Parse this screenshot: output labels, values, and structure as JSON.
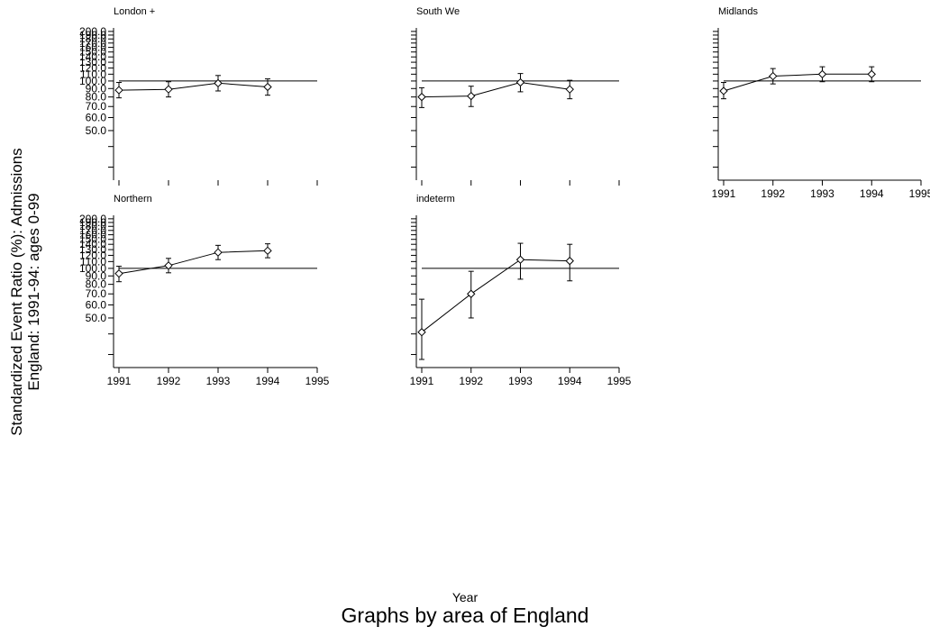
{
  "y_axis_label": {
    "line1": "Standardized Event Ratio (%): Admissions",
    "line2": "England: 1991-94: ages 0-99"
  },
  "x_axis_label": "Year",
  "by_label": "Graphs by area of England",
  "chart_data": {
    "type": "line",
    "style": "small-multiples with error bars, log-scaled y axis, reference line at 100",
    "x_ticks": [
      1991,
      1992,
      1993,
      1994,
      1995
    ],
    "y_ticks": [
      "200.0",
      "190.0",
      "180.0",
      "170.0",
      "160.0",
      "150.0",
      "140.0",
      "130.0",
      "120.0",
      "110.0",
      "100.0",
      "90.0",
      "80.0",
      "70.0",
      "60.0",
      "50.0"
    ],
    "y_minor_ticks": [
      40,
      30
    ],
    "ylim": [
      25,
      210
    ],
    "xlim": [
      1991,
      1995
    ],
    "reference_line": 100,
    "panels": [
      {
        "title": "London +",
        "x": [
          1991,
          1992,
          1993,
          1994
        ],
        "y": [
          88,
          89,
          97,
          92
        ],
        "lower": [
          79,
          80,
          87,
          82
        ],
        "upper": [
          98,
          99,
          108,
          103
        ]
      },
      {
        "title": "South We",
        "x": [
          1991,
          1992,
          1993,
          1994
        ],
        "y": [
          80,
          81,
          98,
          89
        ],
        "lower": [
          69,
          70,
          86,
          78
        ],
        "upper": [
          91,
          93,
          111,
          101
        ]
      },
      {
        "title": "Midlands",
        "x": [
          1991,
          1992,
          1993,
          1994
        ],
        "y": [
          87,
          107,
          110,
          110
        ],
        "lower": [
          78,
          96,
          99,
          99
        ],
        "upper": [
          98,
          119,
          122,
          122
        ]
      },
      {
        "title": "Northern",
        "x": [
          1991,
          1992,
          1993,
          1994
        ],
        "y": [
          93,
          104,
          125,
          128
        ],
        "lower": [
          83,
          94,
          113,
          116
        ],
        "upper": [
          103,
          115,
          138,
          141
        ]
      },
      {
        "title": "indeterm",
        "x": [
          1991,
          1992,
          1993,
          1994
        ],
        "y": [
          41,
          70,
          113,
          111
        ],
        "lower": [
          28,
          50,
          86,
          84
        ],
        "upper": [
          65,
          96,
          142,
          140
        ]
      }
    ]
  }
}
